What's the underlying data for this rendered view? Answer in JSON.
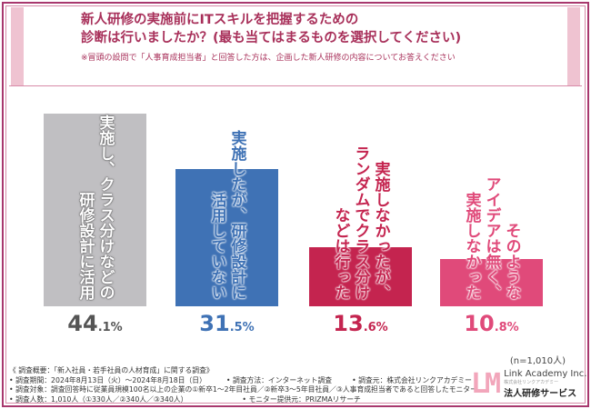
{
  "header": {
    "title_line1": "新人研修の実施前にITスキルを把握するための",
    "title_line2": "診断は行いましたか？(最も当てはまるものを選択してください)",
    "note": "※冒頭の設問で「人事育成担当者」と回答した方は、企画した新人研修の内容についてお答えください"
  },
  "chart_data": {
    "type": "bar",
    "categories": [
      "実施し、クラス分けなどの研修設計に活用",
      "実施したが、研修設計に活用していない",
      "実施しなかったが、ランダムでクラス分けなどは行った",
      "そのようなアイデアは無く、実施しなかった"
    ],
    "label_columns": [
      [
        "実施し、クラス分けなどの",
        "研修設計に活用"
      ],
      [
        "実施したが、研修設計に",
        "活用していない"
      ],
      [
        "実施しなかったが、",
        "ランダムでクラス分け",
        "などは行った"
      ],
      [
        "そのような",
        "アイデアは無く、",
        "実施しなかった"
      ]
    ],
    "values": [
      44.1,
      31.5,
      13.6,
      10.8
    ],
    "value_labels": [
      [
        "44",
        ".1%"
      ],
      [
        "31",
        ".5%"
      ],
      [
        "13",
        ".6%"
      ],
      [
        "10",
        ".8%"
      ]
    ],
    "colors": [
      "#c0bfc2",
      "#3f72b5",
      "#c4244f",
      "#e04a7a"
    ],
    "text_colors": [
      "#555555",
      "#3f72b5",
      "#c4244f",
      "#e04a7a"
    ],
    "sample": "(n=1,010人)",
    "grid": false,
    "legend": "none"
  },
  "footer": {
    "heading": "《 調査概要：「新入社員・若手社員の人材育成」に関する調査》",
    "period": "• 調査期間：2024年8月13日（火）～2024年8月18日（日）",
    "method": "• 調査方法：インターネット調査",
    "organizer": "• 調査元：株式会社リンクアカデミー",
    "target": "• 調査対象：調査回答時に従業員規模100名以上の企業の①新卒1～2年目社員／②新卒3～5年目社員／③人事育成担当者であると回答したモニター",
    "count": "• 調査人数：1,010人（①330人／②340人／③340人）",
    "provider": "• モニター提供元：PRIZMAリサーチ"
  },
  "logo": {
    "mark": "LM",
    "name": "Link Academy Inc.",
    "sub": "株式会社リンクアカデミー",
    "service": "法人研修サービス"
  }
}
